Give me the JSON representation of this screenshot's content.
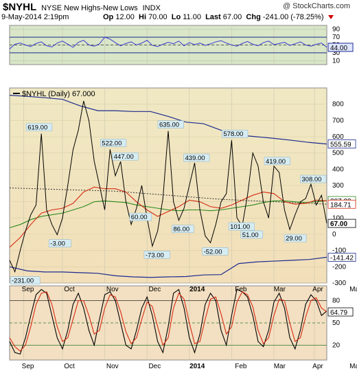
{
  "header": {
    "symbol": "$NYHL",
    "name": "NYSE New Highs-New Lows",
    "type": "INDX",
    "watermark": "@ StockCharts.com",
    "date": "9-May-2014 2:19pm",
    "open_label": "Op",
    "open": "12.00",
    "high_label": "Hi",
    "high": "70.00",
    "low_label": "Lo",
    "low": "11.00",
    "last_label": "Last",
    "last": "67.00",
    "chg_label": "Chg",
    "chg": "-241.00 (-78.25%)"
  },
  "colors": {
    "top_bg": "#d9e6c8",
    "main_bg_top": "#efe8c3",
    "main_bg_bottom": "#f2dfb9",
    "bottom_bg": "#f3dfc1",
    "price": "#000000",
    "ma_red": "#d62a12",
    "ma_green": "#2a8a1c",
    "ma_dotted": "#333333",
    "band": "#1c2a90",
    "rsi_line": "#3a3ad0"
  },
  "chart_data": [
    {
      "type": "line",
      "panel": "indicator-top",
      "y_ticks": [
        "90",
        "70",
        "50",
        "30",
        "10"
      ],
      "ylim": [
        0,
        100
      ],
      "reference_levels": [
        70,
        30
      ],
      "last_label": "44.00",
      "x": [
        0,
        3,
        6,
        9,
        12,
        15,
        18,
        21,
        24,
        27,
        30,
        33,
        36,
        39,
        42,
        45,
        48,
        51,
        54,
        57,
        60,
        63,
        66,
        69,
        72,
        75,
        78,
        81,
        84,
        87,
        90,
        93,
        96,
        99,
        102,
        105,
        108,
        111,
        114,
        117,
        120,
        123,
        126,
        129,
        132,
        135,
        138,
        141,
        144,
        147,
        150,
        153,
        156,
        159,
        162,
        165,
        168,
        171,
        174,
        177,
        180
      ],
      "values": [
        40,
        52,
        55,
        50,
        46,
        54,
        58,
        48,
        45,
        55,
        60,
        52,
        44,
        57,
        62,
        50,
        47,
        53,
        70,
        65,
        56,
        48,
        54,
        58,
        50,
        55,
        62,
        49,
        46,
        52,
        57,
        53,
        60,
        48,
        56,
        51,
        55,
        49,
        53,
        58,
        61,
        55,
        50,
        47,
        54,
        59,
        52,
        48,
        56,
        60,
        51,
        54,
        57,
        49,
        53,
        58,
        50,
        47,
        52,
        55,
        44
      ]
    },
    {
      "type": "line",
      "panel": "main",
      "title": "$NYHL (Daily) 67.000",
      "y_ticks": [
        "800",
        "700",
        "600",
        "500",
        "400",
        "300",
        "200",
        "100",
        "0",
        "-100",
        "-200",
        "-300"
      ],
      "ylim": [
        -300,
        900
      ],
      "x_labels": [
        "Sep",
        "Oct",
        "Nov",
        "Dec",
        "2014",
        "Feb",
        "Mar",
        "Apr",
        "May"
      ],
      "annotations": [
        "619.00",
        "522.00",
        "447.00",
        "635.00",
        "439.00",
        "578.00",
        "419.00",
        "308.00",
        "-3.00",
        "60.00",
        "86.00",
        "-73.00",
        "-52.00",
        "101.00",
        "51.00",
        "29.00",
        "-231.00"
      ],
      "right_labels": [
        "555.59",
        "207.08",
        "184.71",
        "67.00",
        "-141.42"
      ],
      "series": [
        {
          "name": "$NYHL",
          "x": [
            0,
            3,
            6,
            9,
            12,
            15,
            18,
            21,
            24,
            27,
            30,
            33,
            36,
            39,
            42,
            45,
            48,
            51,
            54,
            57,
            60,
            63,
            66,
            69,
            72,
            75,
            78,
            81,
            84,
            87,
            90,
            93,
            96,
            99,
            102,
            105,
            108,
            111,
            114,
            117,
            120,
            123,
            126,
            129,
            132,
            135,
            138,
            141,
            144,
            147,
            150,
            153,
            156,
            159,
            162,
            165,
            168,
            171,
            174,
            177,
            180
          ],
          "values": [
            -160,
            -231,
            -100,
            20,
            120,
            180,
            619,
            150,
            60,
            -3,
            100,
            300,
            520,
            640,
            820,
            700,
            450,
            300,
            150,
            522,
            360,
            447,
            200,
            60,
            160,
            300,
            100,
            -73,
            20,
            220,
            635,
            200,
            86,
            160,
            300,
            439,
            150,
            -10,
            -52,
            60,
            200,
            250,
            578,
            101,
            51,
            240,
            500,
            420,
            200,
            100,
            419,
            380,
            150,
            29,
            120,
            200,
            220,
            308,
            180,
            240,
            67
          ]
        },
        {
          "name": "MA (red)",
          "x": [
            0,
            6,
            12,
            18,
            24,
            30,
            36,
            42,
            48,
            54,
            60,
            66,
            72,
            78,
            84,
            90,
            96,
            102,
            108,
            114,
            120,
            126,
            132,
            138,
            144,
            150,
            156,
            162,
            168,
            174,
            180
          ],
          "values": [
            -80,
            -20,
            60,
            130,
            150,
            160,
            190,
            260,
            290,
            280,
            280,
            260,
            200,
            150,
            110,
            140,
            170,
            210,
            200,
            170,
            160,
            180,
            210,
            240,
            260,
            250,
            200,
            185,
            190,
            210,
            205
          ]
        },
        {
          "name": "MA (green)",
          "x": [
            0,
            6,
            12,
            18,
            24,
            30,
            36,
            42,
            48,
            54,
            60,
            66,
            72,
            78,
            84,
            90,
            96,
            102,
            108,
            114,
            120,
            126,
            132,
            138,
            144,
            150,
            156,
            162,
            168,
            174,
            180
          ],
          "values": [
            40,
            60,
            90,
            110,
            120,
            130,
            150,
            170,
            200,
            205,
            200,
            195,
            180,
            170,
            160,
            150,
            145,
            150,
            150,
            145,
            150,
            160,
            170,
            180,
            195,
            205,
            205,
            200,
            195,
            200,
            207
          ]
        },
        {
          "name": "MA (dotted)",
          "x": [
            0,
            30,
            60,
            90,
            120,
            150,
            180
          ],
          "values": [
            285,
            275,
            265,
            240,
            215,
            200,
            185
          ]
        },
        {
          "name": "Upper band",
          "x": [
            0,
            10,
            20,
            30,
            40,
            50,
            60,
            70,
            80,
            90,
            100,
            110,
            120,
            130,
            140,
            150,
            160,
            170,
            180
          ],
          "values": [
            855,
            848,
            840,
            830,
            790,
            760,
            760,
            755,
            755,
            725,
            690,
            680,
            640,
            610,
            600,
            590,
            578,
            565,
            555
          ]
        },
        {
          "name": "Lower band",
          "x": [
            0,
            10,
            20,
            30,
            40,
            50,
            60,
            70,
            80,
            90,
            100,
            110,
            120,
            130,
            140,
            150,
            160,
            170,
            180
          ],
          "values": [
            -200,
            -225,
            -232,
            -232,
            -236,
            -240,
            -255,
            -262,
            -265,
            -262,
            -260,
            -250,
            -248,
            -180,
            -170,
            -165,
            -160,
            -155,
            -141
          ]
        }
      ]
    },
    {
      "type": "line",
      "panel": "oscillator",
      "y_ticks": [
        "80",
        "50",
        "20"
      ],
      "ylim": [
        0,
        100
      ],
      "reference_levels": [
        80,
        50,
        20
      ],
      "last_label": "64.79",
      "series": [
        {
          "name": "%K",
          "x": [
            0,
            3,
            6,
            9,
            12,
            15,
            18,
            21,
            24,
            27,
            30,
            33,
            36,
            39,
            42,
            45,
            48,
            51,
            54,
            57,
            60,
            63,
            66,
            69,
            72,
            75,
            78,
            81,
            84,
            87,
            90,
            93,
            96,
            99,
            102,
            105,
            108,
            111,
            114,
            117,
            120,
            123,
            126,
            129,
            132,
            135,
            138,
            141,
            144,
            147,
            150,
            153,
            156,
            159,
            162,
            165,
            168,
            171,
            174,
            177,
            180
          ],
          "values": [
            25,
            10,
            8,
            30,
            60,
            88,
            95,
            90,
            60,
            30,
            15,
            40,
            75,
            90,
            70,
            40,
            20,
            55,
            88,
            92,
            80,
            50,
            20,
            15,
            40,
            70,
            85,
            60,
            25,
            10,
            45,
            90,
            95,
            70,
            30,
            10,
            35,
            75,
            90,
            80,
            40,
            20,
            60,
            95,
            92,
            85,
            60,
            25,
            18,
            40,
            78,
            90,
            70,
            30,
            15,
            40,
            75,
            88,
            80,
            60,
            66
          ]
        },
        {
          "name": "%D",
          "x": [
            0,
            3,
            6,
            9,
            12,
            15,
            18,
            21,
            24,
            27,
            30,
            33,
            36,
            39,
            42,
            45,
            48,
            51,
            54,
            57,
            60,
            63,
            66,
            69,
            72,
            75,
            78,
            81,
            84,
            87,
            90,
            93,
            96,
            99,
            102,
            105,
            108,
            111,
            114,
            117,
            120,
            123,
            126,
            129,
            132,
            135,
            138,
            141,
            144,
            147,
            150,
            153,
            156,
            159,
            162,
            165,
            168,
            171,
            174,
            177,
            180
          ],
          "values": [
            30,
            18,
            12,
            20,
            45,
            75,
            90,
            92,
            75,
            45,
            25,
            30,
            55,
            80,
            80,
            60,
            35,
            40,
            70,
            88,
            85,
            65,
            38,
            22,
            30,
            55,
            78,
            72,
            45,
            20,
            30,
            70,
            90,
            82,
            50,
            22,
            25,
            55,
            82,
            85,
            62,
            35,
            45,
            78,
            92,
            88,
            72,
            40,
            22,
            30,
            60,
            82,
            80,
            50,
            25,
            30,
            58,
            80,
            84,
            70,
            65
          ]
        }
      ]
    }
  ]
}
